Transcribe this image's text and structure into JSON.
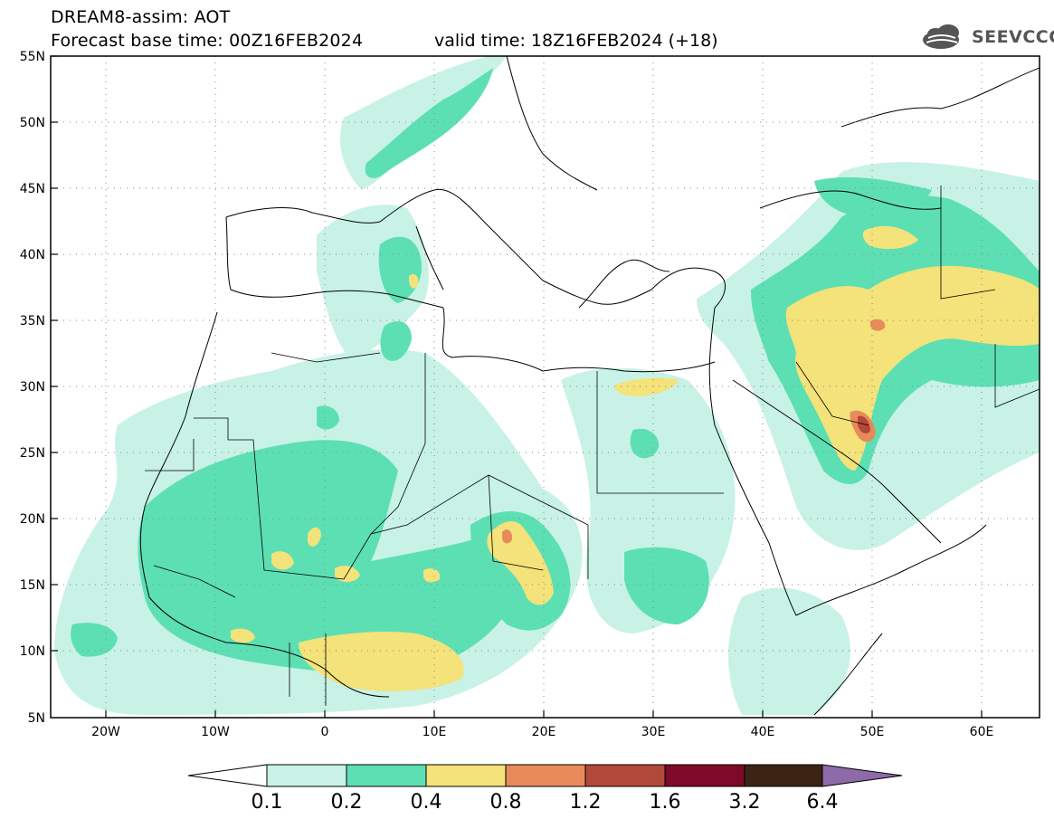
{
  "title": {
    "line1": "DREAM8-assim: AOT",
    "line2": "Forecast base time: 00Z16FEB2024",
    "valid": "valid time: 18Z16FEB2024 (+18)"
  },
  "logo": {
    "text": "SEEVCCC",
    "icon": "cloud-logo-icon"
  },
  "map": {
    "lat_range": [
      5,
      55
    ],
    "lon_range": [
      -25,
      65
    ],
    "lat_ticks": [
      "55N",
      "50N",
      "45N",
      "40N",
      "35N",
      "30N",
      "25N",
      "20N",
      "15N",
      "10N",
      "5N"
    ],
    "lon_ticks": [
      "20W",
      "10W",
      "0",
      "10E",
      "20E",
      "30E",
      "40E",
      "50E",
      "60E"
    ],
    "grid": "dotted"
  },
  "colorbar": {
    "labels": [
      "0.1",
      "0.2",
      "0.4",
      "0.8",
      "1.2",
      "1.6",
      "3.2",
      "6.4"
    ],
    "colors": [
      "#ffffff",
      "#c8f2e6",
      "#5ddfb4",
      "#f4e27a",
      "#e98a5a",
      "#b2483a",
      "#7d0a26",
      "#3b2414",
      "#8e6aa8"
    ]
  }
}
